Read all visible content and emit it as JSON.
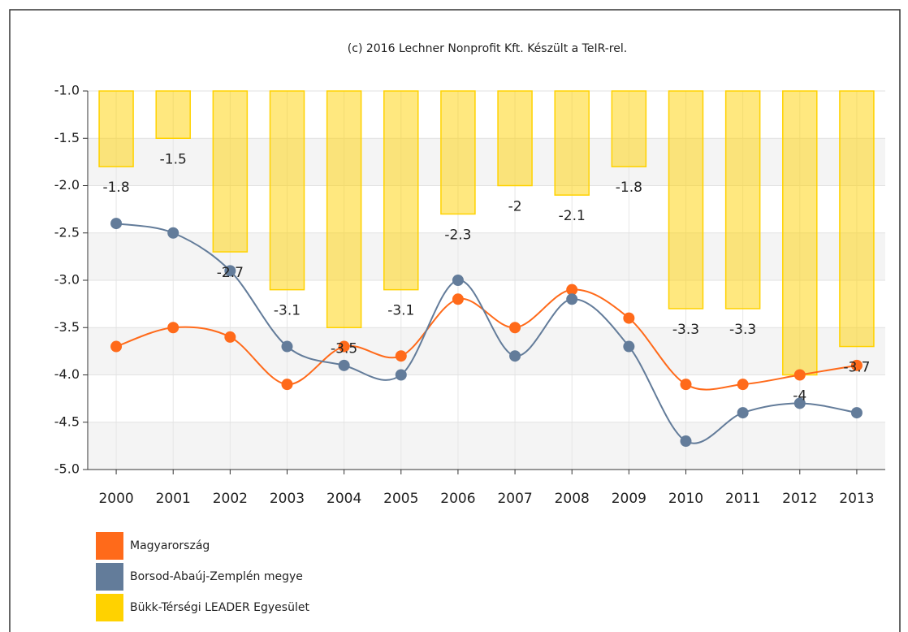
{
  "chart_data": {
    "type": "bar",
    "title": "(c) 2016 Lechner Nonprofit Kft. Készült a TeIR-rel.",
    "categories": [
      "2000",
      "2001",
      "2002",
      "2003",
      "2004",
      "2005",
      "2006",
      "2007",
      "2008",
      "2009",
      "2010",
      "2011",
      "2012",
      "2013"
    ],
    "series": [
      {
        "name": "Magyarország",
        "type": "line",
        "color": "#ff6a1a",
        "values": [
          -3.7,
          -3.5,
          -3.6,
          -4.1,
          -3.7,
          -3.8,
          -3.2,
          -3.5,
          -3.1,
          -3.4,
          -4.1,
          -4.1,
          -4.0,
          -3.9
        ]
      },
      {
        "name": "Borsod-Abaúj-Zemplén megye",
        "type": "line",
        "color": "#637c9a",
        "values": [
          -2.4,
          -2.5,
          -2.9,
          -3.7,
          -3.9,
          -4.0,
          -3.0,
          -3.8,
          -3.2,
          -3.7,
          -4.7,
          -4.4,
          -4.3,
          -4.4
        ]
      },
      {
        "name": "Bükk-Térségi LEADER Egyesület",
        "type": "bar",
        "color": "#ffd200",
        "values": [
          -1.8,
          -1.5,
          -2.7,
          -3.1,
          -3.5,
          -3.1,
          -2.3,
          -2,
          -2.1,
          -1.8,
          -3.3,
          -3.3,
          -4,
          -3.7
        ]
      }
    ],
    "ylim": [
      -1,
      -5
    ],
    "yticks": [
      {
        "value": -1,
        "label": "-1.0"
      },
      -1.5,
      {
        "value": -2,
        "label": "-2.0"
      },
      -2.5,
      {
        "value": -3,
        "label": "-3.0"
      },
      -3.5,
      {
        "value": -4,
        "label": "-4.0"
      },
      -4.5,
      {
        "value": -5,
        "label": "-5.0"
      }
    ],
    "grid": true
  }
}
